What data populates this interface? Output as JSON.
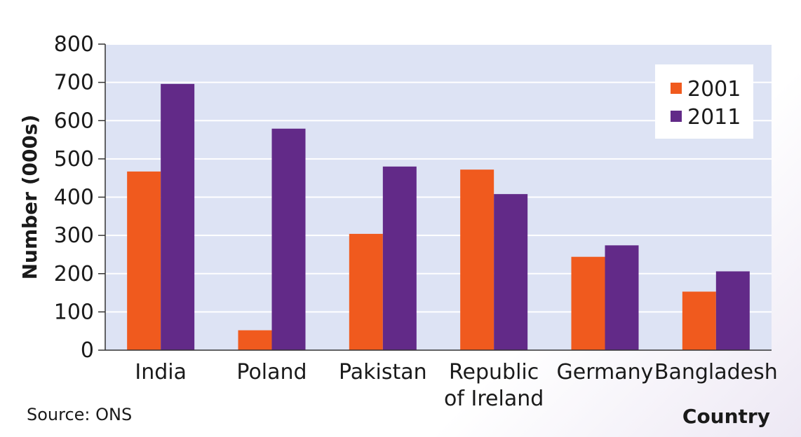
{
  "chart_data": {
    "type": "bar",
    "categories": [
      [
        "India"
      ],
      [
        "Poland"
      ],
      [
        "Pakistan"
      ],
      [
        "Republic",
        "of Ireland"
      ],
      [
        "Germany"
      ],
      [
        "Bangladesh"
      ]
    ],
    "series": [
      {
        "name": "2001",
        "color": "#f05a1e",
        "values": [
          467,
          52,
          304,
          472,
          244,
          153
        ]
      },
      {
        "name": "2011",
        "color": "#622a88",
        "values": [
          696,
          579,
          480,
          408,
          274,
          206
        ]
      }
    ],
    "ylabel": "Number (000s)",
    "xlabel": "Country",
    "ylim": [
      0,
      800
    ],
    "yticks": [
      0,
      100,
      200,
      300,
      400,
      500,
      600,
      700,
      800
    ],
    "grid": true,
    "legend_position": "top-right",
    "plot_background": "#dde3f4",
    "source": "Source: ONS"
  }
}
